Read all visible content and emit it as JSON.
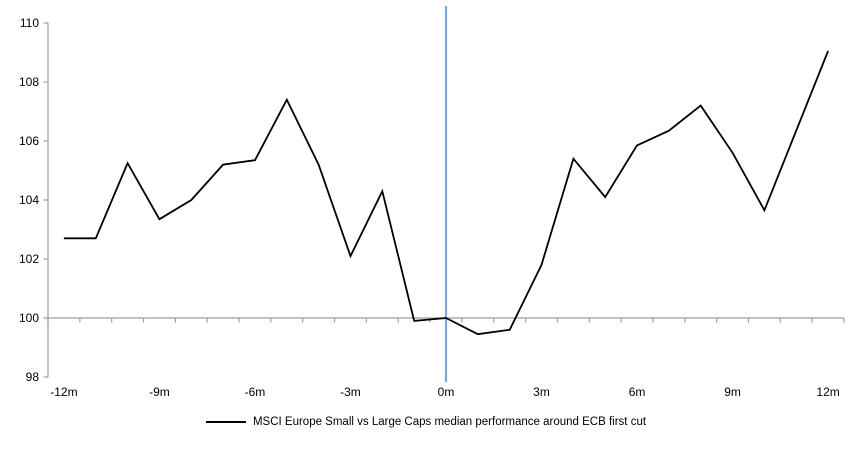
{
  "legend": {
    "label": "MSCI Europe Small vs Large Caps median performance around ECB first cut"
  },
  "chart_data": {
    "type": "line",
    "title": "",
    "xlabel": "",
    "ylabel": "",
    "x": [
      -12,
      -11,
      -10,
      -9,
      -8,
      -7,
      -6,
      -5,
      -4,
      -3,
      -2,
      -1,
      0,
      1,
      2,
      3,
      4,
      5,
      6,
      7,
      8,
      9,
      10,
      11,
      12
    ],
    "series": [
      {
        "name": "MSCI Europe Small vs Large Caps median performance around ECB first cut",
        "color": "#000000",
        "values": [
          102.7,
          102.7,
          105.25,
          103.35,
          104.0,
          105.2,
          105.35,
          107.4,
          105.2,
          102.1,
          104.3,
          99.9,
          100.0,
          99.45,
          99.6,
          101.8,
          105.4,
          104.1,
          105.85,
          106.35,
          107.2,
          105.6,
          103.65,
          106.35,
          109.05
        ]
      }
    ],
    "ylim": [
      98,
      110
    ],
    "y_ticks": [
      98,
      100,
      102,
      104,
      106,
      108,
      110
    ],
    "x_ticks": [
      {
        "pos": -12,
        "label": "-12m"
      },
      {
        "pos": -9,
        "label": "-9m"
      },
      {
        "pos": -6,
        "label": "-6m"
      },
      {
        "pos": -3,
        "label": "-3m"
      },
      {
        "pos": 0,
        "label": "0m"
      },
      {
        "pos": 3,
        "label": "3m"
      },
      {
        "pos": 6,
        "label": "6m"
      },
      {
        "pos": 9,
        "label": "9m"
      },
      {
        "pos": 12,
        "label": "12m"
      }
    ],
    "baseline_value": 100,
    "event_line": {
      "x": 0,
      "color": "#7EA6D4"
    },
    "axis_color": "#9E9E9E",
    "grid": false,
    "legend_position": "bottom-center"
  }
}
